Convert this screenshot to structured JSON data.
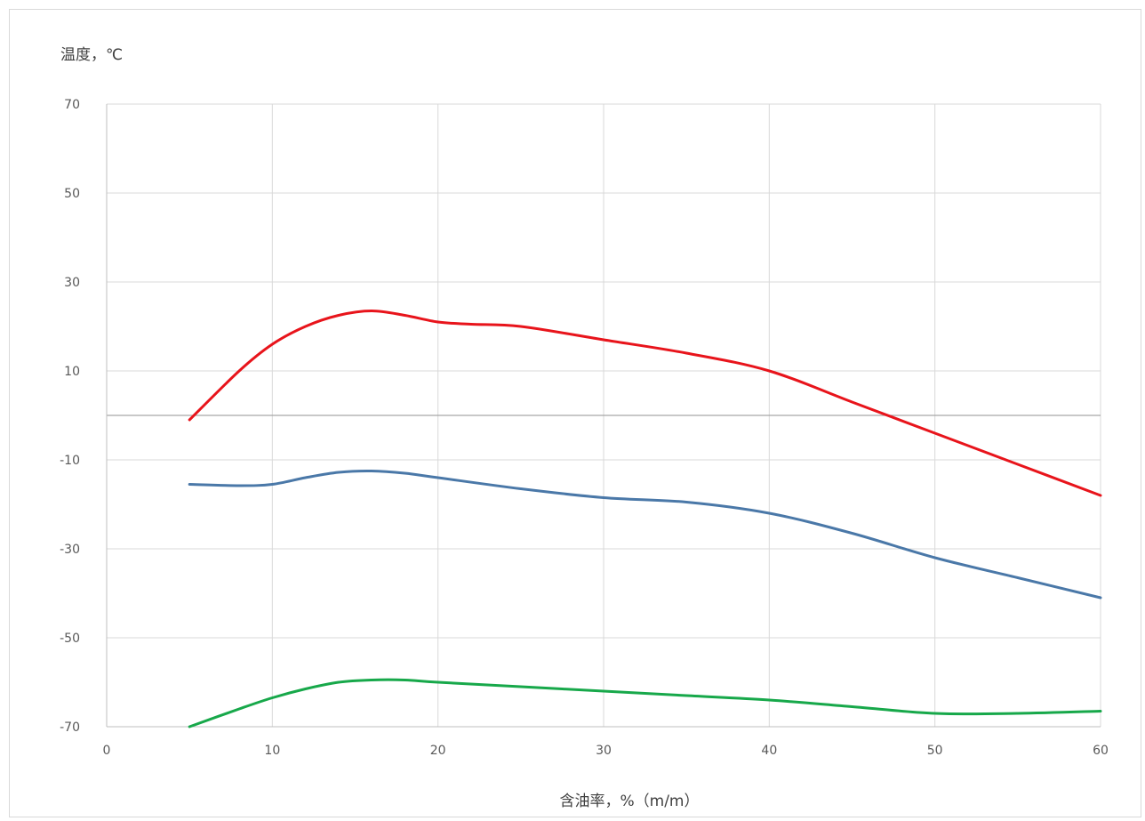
{
  "chart_data": {
    "type": "line",
    "title": "",
    "xlabel": "含油率，%（m/m）",
    "ylabel": "温度，℃",
    "xlim": [
      0,
      60
    ],
    "ylim": [
      -70,
      70
    ],
    "x_ticks": [
      0,
      10,
      20,
      30,
      40,
      50,
      60
    ],
    "y_ticks": [
      -70,
      -50,
      -30,
      -10,
      10,
      30,
      50,
      70
    ],
    "y_tick_labels": [
      "-70",
      "-50",
      "-30",
      "-10",
      "10",
      "30",
      "50",
      "70"
    ],
    "x_tick_labels": [
      "0",
      "10",
      "20",
      "30",
      "40",
      "50",
      "60"
    ],
    "grid": true,
    "zero_line": true,
    "legend": "none",
    "series": [
      {
        "color": "#e8141b",
        "x": [
          5,
          8,
          10,
          12,
          14,
          16,
          18,
          20,
          22,
          25,
          30,
          35,
          40,
          45,
          50,
          55,
          60
        ],
        "y": [
          -1,
          10,
          16,
          20,
          22.5,
          23.5,
          22.5,
          21,
          20.5,
          20,
          17,
          14,
          10,
          3,
          -4,
          -11,
          -18
        ]
      },
      {
        "color": "#4a78a8",
        "x": [
          5,
          8,
          10,
          12,
          14,
          16,
          18,
          20,
          25,
          30,
          35,
          40,
          45,
          50,
          55,
          60
        ],
        "y": [
          -15.5,
          -15.8,
          -15.5,
          -14,
          -12.8,
          -12.5,
          -13,
          -14,
          -16.5,
          -18.5,
          -19.5,
          -22,
          -26.5,
          -32,
          -36.5,
          -41
        ]
      },
      {
        "color": "#17a84a",
        "x": [
          5,
          8,
          10,
          12,
          14,
          16,
          18,
          20,
          25,
          30,
          35,
          40,
          45,
          50,
          55,
          60
        ],
        "y": [
          -70,
          -66,
          -63.5,
          -61.5,
          -60,
          -59.5,
          -59.5,
          -60,
          -61,
          -62,
          -63,
          -64,
          -65.5,
          -67,
          -67,
          -66.5
        ]
      }
    ]
  }
}
